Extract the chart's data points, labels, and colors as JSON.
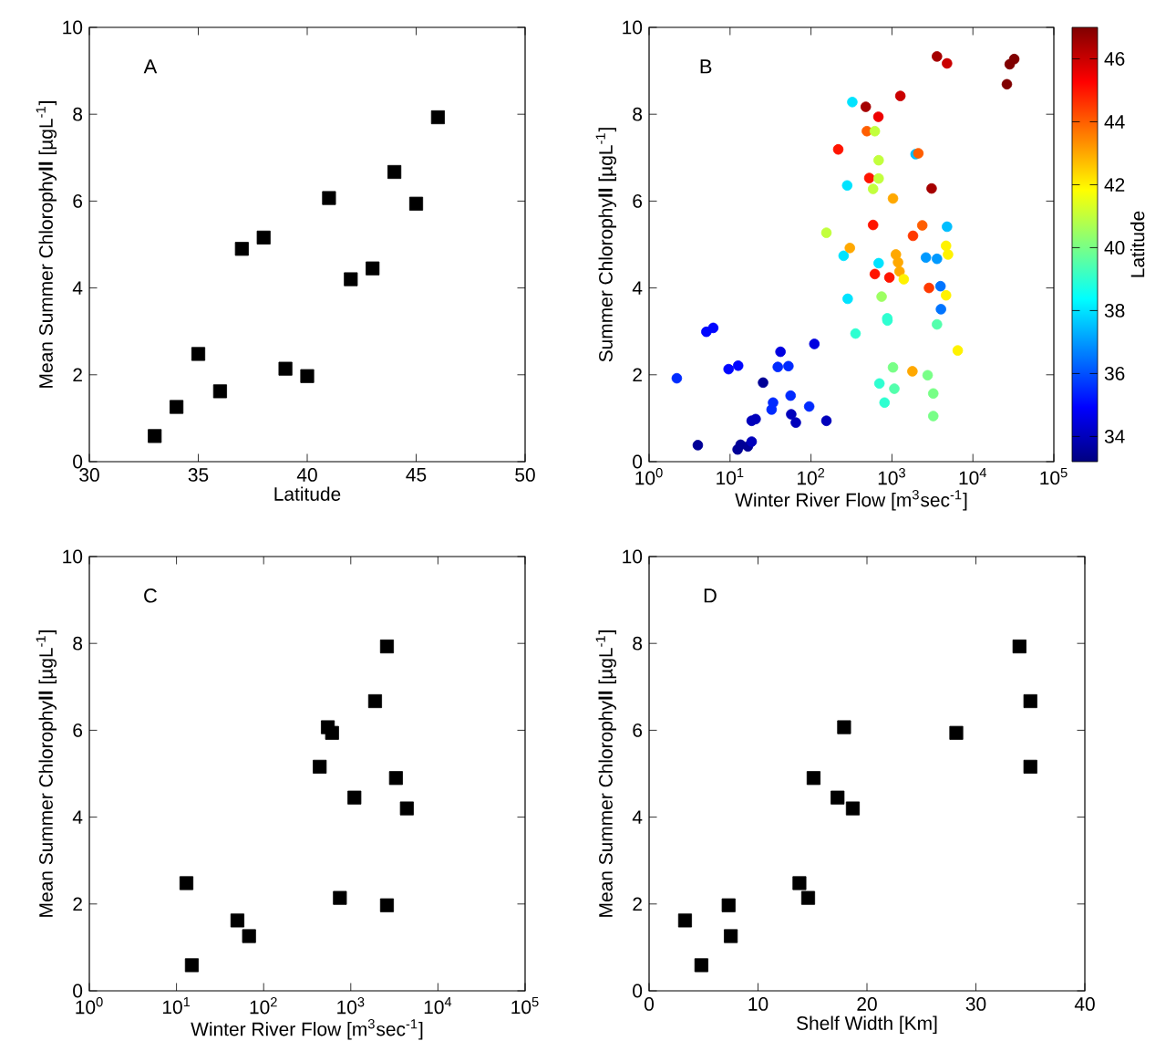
{
  "chart_data": [
    {
      "type": "scatter",
      "xlabel": "Latitude",
      "ylabel": "Mean Summer Chlorophy**ll** [µgL$^{-1}$]",
      "annotations": [
        "A"
      ],
      "marker": "square",
      "color": "#000000",
      "xlim": [
        30,
        50
      ],
      "ylim": [
        0,
        10
      ],
      "xticks": [
        30,
        35,
        40,
        45,
        50
      ],
      "yticks": [
        0,
        2,
        4,
        6,
        8,
        10
      ],
      "x": [
        33,
        34,
        35,
        36,
        37,
        38,
        39,
        40,
        41,
        42,
        43,
        44,
        45,
        46
      ],
      "values": [
        0.59,
        1.26,
        2.48,
        1.62,
        4.9,
        5.16,
        2.14,
        1.97,
        6.07,
        4.2,
        4.45,
        6.67,
        5.94,
        7.93
      ]
    },
    {
      "type": "scatter",
      "xlabel": "Winter River Flow [m$^{3}$sec$^{-1}$]",
      "ylabel": "Summer Chlorophy**ll** [µgL$^{-1}$]",
      "annotations": [
        "B"
      ],
      "marker": "circle",
      "log": "x",
      "clabel": "Latitude",
      "xlim": [
        1,
        100000
      ],
      "ylim": [
        0,
        10
      ],
      "xticks": [
        {
          "value": 1,
          "label": "10$^{0}$"
        },
        {
          "value": 10,
          "label": "10$^{1}$"
        },
        {
          "value": 100,
          "label": "10$^{2}$"
        },
        {
          "value": 1000,
          "label": "10$^{3}$"
        },
        {
          "value": 10000,
          "label": "10$^{4}$"
        },
        {
          "value": 100000,
          "label": "10$^{5}$"
        }
      ],
      "yticks": [
        0,
        2,
        4,
        6,
        8,
        10
      ],
      "clim": [
        33.2,
        47
      ],
      "cticks": [
        34,
        36,
        38,
        40,
        42,
        44,
        46
      ],
      "x": [
        2.2,
        4.0,
        5.1,
        6.2,
        9.6,
        12.6,
        12.4,
        13.5,
        16.6,
        18.5,
        18.5,
        20.7,
        25.6,
        32.6,
        34,
        38.9,
        42,
        52.6,
        56,
        57,
        65,
        95,
        110,
        155,
        155,
        217,
        280,
        253,
        284,
        302,
        324,
        355,
        475,
        490,
        525,
        585,
        585,
        615,
        615,
        680,
        685,
        685,
        685,
        700,
        745,
        810,
        875,
        880,
        930,
        1030,
        1030,
        1070,
        1120,
        1190,
        1240,
        1270,
        1400,
        1820,
        1790,
        1960,
        2120,
        2370,
        2630,
        2760,
        2870,
        3090,
        3240,
        3240,
        3600,
        3600,
        3600,
        3980,
        4030,
        4790,
        4790,
        4660,
        4930,
        4660,
        6500,
        26300,
        28500,
        32400
      ],
      "values": [
        1.92,
        0.38,
        2.99,
        3.08,
        2.13,
        2.21,
        0.28,
        0.39,
        0.35,
        0.46,
        0.94,
        0.98,
        1.82,
        1.2,
        1.36,
        2.18,
        2.53,
        2.2,
        1.52,
        1.09,
        0.9,
        1.27,
        2.71,
        0.94,
        5.27,
        7.19,
        6.36,
        4.74,
        3.75,
        4.92,
        8.28,
        2.95,
        8.17,
        7.61,
        6.53,
        6.28,
        5.45,
        4.32,
        7.61,
        7.94,
        6.94,
        6.52,
        4.57,
        1.8,
        3.8,
        1.36,
        3.3,
        3.25,
        4.24,
        2.17,
        6.06,
        1.68,
        4.77,
        4.59,
        4.38,
        8.42,
        4.2,
        5.2,
        2.08,
        7.08,
        7.1,
        5.44,
        4.7,
        1.99,
        4.0,
        6.29,
        1.57,
        1.05,
        9.33,
        3.16,
        4.67,
        4.04,
        3.51,
        9.17,
        5.41,
        4.97,
        4.77,
        3.83,
        2.56,
        8.69,
        9.15,
        9.27
      ],
      "cvalues": [
        35.5,
        33.5,
        35,
        35,
        35,
        35,
        33.5,
        33.5,
        33.5,
        34,
        34,
        34,
        33.5,
        35.5,
        35.5,
        35.5,
        34.5,
        35.5,
        35.5,
        34,
        34,
        35.5,
        34.5,
        34,
        41,
        45,
        38,
        38,
        38,
        43,
        38,
        39,
        46.5,
        44,
        45,
        41,
        45,
        45,
        41,
        45.5,
        41,
        41,
        38,
        39,
        40.5,
        39,
        39,
        39,
        45,
        40,
        43,
        39.5,
        43,
        43,
        43,
        46,
        42,
        44.5,
        43,
        37.5,
        44,
        44,
        37,
        40,
        44.5,
        46.5,
        40,
        40,
        46.5,
        39.5,
        37,
        36.5,
        36.5,
        46,
        37.5,
        42,
        42,
        42,
        42,
        47,
        47,
        47
      ]
    },
    {
      "type": "scatter",
      "xlabel": "Winter River Flow [m$^{3}$sec$^{-1}$]",
      "ylabel": "Mean Summer Chlorophy**ll** [µgL$^{-1}$]",
      "annotations": [
        "C"
      ],
      "marker": "square",
      "color": "#000000",
      "log": "x",
      "xlim": [
        1,
        100000
      ],
      "ylim": [
        0,
        10
      ],
      "xticks": [
        {
          "value": 1,
          "label": "10$^{0}$"
        },
        {
          "value": 10,
          "label": "10$^{1}$"
        },
        {
          "value": 100,
          "label": "10$^{2}$"
        },
        {
          "value": 1000,
          "label": "10$^{3}$"
        },
        {
          "value": 10000,
          "label": "10$^{4}$"
        },
        {
          "value": 100000,
          "label": "10$^{5}$"
        }
      ],
      "yticks": [
        0,
        2,
        4,
        6,
        8,
        10
      ],
      "x": [
        15,
        68,
        13,
        50,
        3300,
        440,
        750,
        2600,
        545,
        4400,
        1100,
        1900,
        610,
        2600
      ],
      "values": [
        0.59,
        1.26,
        2.48,
        1.62,
        4.9,
        5.16,
        2.14,
        1.97,
        6.07,
        4.2,
        4.45,
        6.67,
        5.94,
        7.93
      ]
    },
    {
      "type": "scatter",
      "xlabel": "Shelf Width [Km]",
      "ylabel": "Mean Summer Chlorophy**ll** [µgL$^{-1}$]",
      "annotations": [
        "D"
      ],
      "marker": "square",
      "color": "#000000",
      "xlim": [
        0,
        40
      ],
      "ylim": [
        0,
        10
      ],
      "xticks": [
        0,
        10,
        20,
        30,
        40
      ],
      "yticks": [
        0,
        2,
        4,
        6,
        8,
        10
      ],
      "x": [
        3.3,
        4.8,
        7.3,
        7.5,
        13.8,
        14.6,
        15.1,
        17.3,
        17.9,
        18.7,
        28.2,
        34.0,
        35.0,
        35.0
      ],
      "values": [
        1.62,
        0.59,
        1.97,
        1.26,
        2.48,
        2.14,
        4.9,
        4.45,
        6.07,
        4.2,
        5.94,
        7.93,
        6.67,
        5.16
      ]
    }
  ]
}
